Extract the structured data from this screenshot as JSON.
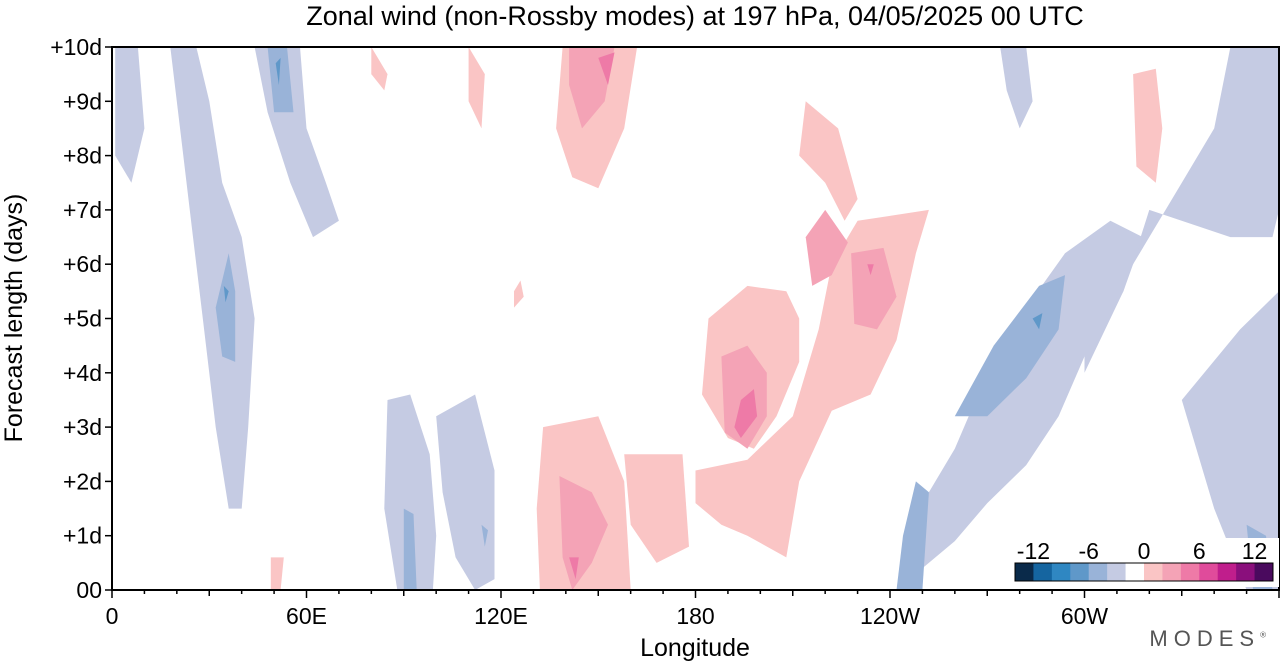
{
  "chart_data": {
    "type": "heatmap",
    "title": "Zonal wind (non-Rossby modes) at 197 hPa,  04/05/2025  00 UTC",
    "xlabel": "Longitude",
    "ylabel": "Forecast length (days)",
    "x_range_deg_east": [
      0,
      360
    ],
    "y_range_days": [
      0,
      10
    ],
    "x_ticks": [
      {
        "deg": 0,
        "label": "0"
      },
      {
        "deg": 60,
        "label": "60E"
      },
      {
        "deg": 120,
        "label": "120E"
      },
      {
        "deg": 180,
        "label": "180"
      },
      {
        "deg": 240,
        "label": "120W"
      },
      {
        "deg": 300,
        "label": "60W"
      }
    ],
    "y_ticks": [
      {
        "day": 0,
        "label": "00"
      },
      {
        "day": 1,
        "label": "+1d"
      },
      {
        "day": 2,
        "label": "+2d"
      },
      {
        "day": 3,
        "label": "+3d"
      },
      {
        "day": 4,
        "label": "+4d"
      },
      {
        "day": 5,
        "label": "+5d"
      },
      {
        "day": 6,
        "label": "+6d"
      },
      {
        "day": 7,
        "label": "+7d"
      },
      {
        "day": 8,
        "label": "+8d"
      },
      {
        "day": 9,
        "label": "+9d"
      },
      {
        "day": 10,
        "label": "+10d"
      }
    ],
    "colorbar": {
      "levels": [
        -14,
        -12,
        -10,
        -8,
        -6,
        -4,
        -2,
        2,
        4,
        6,
        8,
        10,
        12,
        14
      ],
      "colors": [
        "#0a2a4a",
        "#1565a0",
        "#2f87c2",
        "#5f98c9",
        "#99b3d8",
        "#c5cbe3",
        "#ffffff",
        "#fac5c5",
        "#f4a3b6",
        "#ee7aa7",
        "#e04b9b",
        "#c01e8c",
        "#8a0f7c",
        "#4a0a5e"
      ],
      "labels": [
        {
          "value": -12,
          "label": "-12"
        },
        {
          "value": -6,
          "label": "-6"
        },
        {
          "value": 0,
          "label": "0"
        },
        {
          "value": 6,
          "label": "6"
        },
        {
          "value": 12,
          "label": "12"
        }
      ],
      "placement": "bottom-right"
    },
    "features": [
      {
        "sign": "neg",
        "level": 1,
        "points": [
          [
            18,
            10
          ],
          [
            26,
            10
          ],
          [
            30,
            9
          ],
          [
            34,
            7.5
          ],
          [
            40,
            6.5
          ],
          [
            44,
            5
          ],
          [
            42,
            3
          ],
          [
            40,
            1.5
          ],
          [
            36,
            1.5
          ],
          [
            32,
            3
          ],
          [
            28,
            5
          ],
          [
            25,
            6.5
          ],
          [
            22,
            8
          ]
        ]
      },
      {
        "sign": "neg",
        "level": 2,
        "points": [
          [
            36,
            6.2
          ],
          [
            38,
            5.5
          ],
          [
            38,
            4.2
          ],
          [
            34,
            4.3
          ],
          [
            32,
            5.2
          ]
        ]
      },
      {
        "sign": "neg",
        "level": 3,
        "points": [
          [
            34.5,
            5.6
          ],
          [
            36,
            5.5
          ],
          [
            35,
            5.3
          ]
        ]
      },
      {
        "sign": "neg",
        "level": 1,
        "points": [
          [
            44,
            10
          ],
          [
            58,
            10
          ],
          [
            60,
            8.5
          ],
          [
            66,
            7.5
          ],
          [
            70,
            6.8
          ],
          [
            62,
            6.5
          ],
          [
            55,
            7.5
          ],
          [
            48,
            8.8
          ]
        ]
      },
      {
        "sign": "neg",
        "level": 2,
        "points": [
          [
            48,
            10
          ],
          [
            54,
            10
          ],
          [
            56,
            8.8
          ],
          [
            50,
            8.8
          ]
        ]
      },
      {
        "sign": "neg",
        "level": 3,
        "points": [
          [
            50.5,
            9.7
          ],
          [
            52,
            9.8
          ],
          [
            51.5,
            9.3
          ]
        ]
      },
      {
        "sign": "neg",
        "level": 1,
        "points": [
          [
            1,
            10
          ],
          [
            8,
            10
          ],
          [
            10,
            8.5
          ],
          [
            6,
            7.5
          ],
          [
            1,
            8
          ]
        ]
      },
      {
        "sign": "neg",
        "level": 1,
        "points": [
          [
            85,
            3.5
          ],
          [
            92,
            3.6
          ],
          [
            98,
            2.5
          ],
          [
            100,
            1.0
          ],
          [
            99,
            0
          ],
          [
            88,
            0
          ],
          [
            84,
            1.5
          ]
        ]
      },
      {
        "sign": "neg",
        "level": 2,
        "points": [
          [
            90,
            1.5
          ],
          [
            93,
            1.4
          ],
          [
            94,
            0
          ],
          [
            90,
            0
          ]
        ]
      },
      {
        "sign": "neg",
        "level": 1,
        "points": [
          [
            100,
            3.2
          ],
          [
            112,
            3.6
          ],
          [
            118,
            2.2
          ],
          [
            118,
            0.2
          ],
          [
            112,
            0
          ],
          [
            106,
            0.6
          ],
          [
            102,
            1.8
          ]
        ]
      },
      {
        "sign": "neg",
        "level": 2,
        "points": [
          [
            114,
            1.2
          ],
          [
            116,
            1.1
          ],
          [
            115,
            0.8
          ]
        ]
      },
      {
        "sign": "neg",
        "level": 1,
        "points": [
          [
            320,
            7.0
          ],
          [
            345,
            6.5
          ],
          [
            358,
            6.5
          ],
          [
            360,
            7
          ],
          [
            360,
            10
          ],
          [
            345,
            10
          ],
          [
            340,
            8.5
          ],
          [
            330,
            7.5
          ],
          [
            310,
            5.5
          ],
          [
            305,
            5.0
          ],
          [
            300,
            4.3
          ],
          [
            300,
            4.0
          ],
          [
            312,
            5.5
          ]
        ]
      },
      {
        "sign": "neg",
        "level": 1,
        "points": [
          [
            246,
            1.2
          ],
          [
            260,
            2.6
          ],
          [
            270,
            4.0
          ],
          [
            282,
            5.2
          ],
          [
            294,
            6.2
          ],
          [
            308,
            6.8
          ],
          [
            318,
            6.5
          ],
          [
            312,
            5.5
          ],
          [
            300,
            4.3
          ],
          [
            292,
            3.2
          ],
          [
            282,
            2.3
          ],
          [
            270,
            1.6
          ],
          [
            260,
            0.9
          ],
          [
            250,
            0.4
          ]
        ]
      },
      {
        "sign": "neg",
        "level": 2,
        "points": [
          [
            260,
            3.2
          ],
          [
            272,
            4.5
          ],
          [
            286,
            5.6
          ],
          [
            294,
            5.8
          ],
          [
            292,
            4.8
          ],
          [
            282,
            3.9
          ],
          [
            270,
            3.2
          ]
        ]
      },
      {
        "sign": "neg",
        "level": 3,
        "points": [
          [
            284,
            5.0
          ],
          [
            287,
            5.1
          ],
          [
            286,
            4.8
          ]
        ]
      },
      {
        "sign": "neg",
        "level": 2,
        "points": [
          [
            242,
            0
          ],
          [
            250,
            0
          ],
          [
            252,
            1.8
          ],
          [
            248,
            2.0
          ],
          [
            244,
            1.0
          ]
        ]
      },
      {
        "sign": "neg",
        "level": 1,
        "points": [
          [
            330,
            3.5
          ],
          [
            348,
            4.8
          ],
          [
            360,
            5.5
          ],
          [
            360,
            0
          ],
          [
            350,
            0
          ],
          [
            340,
            1.5
          ]
        ]
      },
      {
        "sign": "neg",
        "level": 2,
        "points": [
          [
            350,
            1.2
          ],
          [
            356,
            1.0
          ],
          [
            358,
            0
          ],
          [
            352,
            0
          ]
        ]
      },
      {
        "sign": "neg",
        "level": 1,
        "points": [
          [
            274,
            10
          ],
          [
            282,
            10
          ],
          [
            284,
            9
          ],
          [
            280,
            8.5
          ],
          [
            276,
            9.2
          ]
        ]
      },
      {
        "sign": "neg",
        "level": 1,
        "points": [
          [
            146,
            10
          ],
          [
            152,
            9.5
          ],
          [
            150,
            8.5
          ],
          [
            146,
            9.0
          ]
        ]
      },
      {
        "sign": "pos",
        "level": 1,
        "points": [
          [
            139,
            10
          ],
          [
            162,
            10
          ],
          [
            158,
            8.5
          ],
          [
            150,
            7.4
          ],
          [
            142,
            7.6
          ],
          [
            137,
            8.5
          ]
        ]
      },
      {
        "sign": "pos",
        "level": 2,
        "points": [
          [
            141,
            10
          ],
          [
            155,
            10
          ],
          [
            152,
            9.0
          ],
          [
            145,
            8.5
          ],
          [
            141,
            9.3
          ]
        ]
      },
      {
        "sign": "pos",
        "level": 3,
        "points": [
          [
            150,
            9.8
          ],
          [
            155,
            9.9
          ],
          [
            153,
            9.3
          ]
        ]
      },
      {
        "sign": "pos",
        "level": 1,
        "points": [
          [
            110,
            10
          ],
          [
            115,
            9.5
          ],
          [
            114,
            8.5
          ],
          [
            110,
            9.0
          ]
        ]
      },
      {
        "sign": "pos",
        "level": 1,
        "points": [
          [
            80,
            10
          ],
          [
            85,
            9.5
          ],
          [
            84,
            9.2
          ],
          [
            80,
            9.5
          ]
        ]
      },
      {
        "sign": "pos",
        "level": 1,
        "points": [
          [
            133,
            3.0
          ],
          [
            150,
            3.2
          ],
          [
            158,
            2.0
          ],
          [
            160,
            0
          ],
          [
            132,
            0
          ],
          [
            131,
            1.5
          ]
        ]
      },
      {
        "sign": "pos",
        "level": 2,
        "points": [
          [
            138,
            2.1
          ],
          [
            148,
            1.8
          ],
          [
            153,
            1.2
          ],
          [
            148,
            0.5
          ],
          [
            142,
            0
          ],
          [
            139,
            0.6
          ]
        ]
      },
      {
        "sign": "pos",
        "level": 3,
        "points": [
          [
            141,
            0.6
          ],
          [
            144,
            0.6
          ],
          [
            143,
            0.2
          ]
        ]
      },
      {
        "sign": "pos",
        "level": 1,
        "points": [
          [
            180,
            2.2
          ],
          [
            196,
            2.4
          ],
          [
            210,
            3.2
          ],
          [
            218,
            4.8
          ],
          [
            222,
            6.0
          ],
          [
            230,
            6.8
          ],
          [
            252,
            7.0
          ],
          [
            248,
            6.2
          ],
          [
            242,
            4.6
          ],
          [
            234,
            3.6
          ],
          [
            222,
            3.3
          ],
          [
            212,
            2.0
          ],
          [
            208,
            0.6
          ],
          [
            196,
            1.0
          ],
          [
            188,
            1.2
          ],
          [
            180,
            1.6
          ]
        ]
      },
      {
        "sign": "pos",
        "level": 1,
        "points": [
          [
            158,
            2.5
          ],
          [
            176,
            2.5
          ],
          [
            178,
            0.8
          ],
          [
            168,
            0.5
          ],
          [
            160,
            1.2
          ]
        ]
      },
      {
        "sign": "pos",
        "level": 1,
        "points": [
          [
            214,
            9.0
          ],
          [
            224,
            8.5
          ],
          [
            230,
            7.2
          ],
          [
            226,
            6.8
          ],
          [
            220,
            7.5
          ],
          [
            212,
            8.0
          ]
        ]
      },
      {
        "sign": "pos",
        "level": 1,
        "points": [
          [
            184,
            5.0
          ],
          [
            196,
            5.6
          ],
          [
            208,
            5.5
          ],
          [
            212,
            5.0
          ],
          [
            212,
            4.2
          ],
          [
            205,
            3.2
          ],
          [
            198,
            2.6
          ],
          [
            190,
            2.8
          ],
          [
            182,
            3.6
          ]
        ]
      },
      {
        "sign": "pos",
        "level": 2,
        "points": [
          [
            188,
            4.3
          ],
          [
            196,
            4.5
          ],
          [
            202,
            4.0
          ],
          [
            202,
            3.2
          ],
          [
            196,
            2.6
          ],
          [
            189,
            2.9
          ]
        ]
      },
      {
        "sign": "pos",
        "level": 3,
        "points": [
          [
            194,
            3.5
          ],
          [
            198,
            3.7
          ],
          [
            199,
            3.2
          ],
          [
            194,
            2.8
          ],
          [
            192,
            3.0
          ]
        ]
      },
      {
        "sign": "pos",
        "level": 2,
        "points": [
          [
            214,
            6.5
          ],
          [
            220,
            7.0
          ],
          [
            227,
            6.4
          ],
          [
            222,
            5.8
          ],
          [
            216,
            5.6
          ]
        ]
      },
      {
        "sign": "pos",
        "level": 2,
        "points": [
          [
            228,
            6.2
          ],
          [
            238,
            6.3
          ],
          [
            242,
            5.4
          ],
          [
            236,
            4.8
          ],
          [
            229,
            4.9
          ]
        ]
      },
      {
        "sign": "pos",
        "level": 3,
        "points": [
          [
            233,
            6.0
          ],
          [
            235,
            6.0
          ],
          [
            234,
            5.8
          ]
        ]
      },
      {
        "sign": "pos",
        "level": 1,
        "points": [
          [
            315,
            9.5
          ],
          [
            322,
            9.6
          ],
          [
            324,
            8.5
          ],
          [
            322,
            7.5
          ],
          [
            316,
            7.8
          ]
        ]
      },
      {
        "sign": "pos",
        "level": 1,
        "points": [
          [
            124,
            5.5
          ],
          [
            126,
            5.7
          ],
          [
            127,
            5.4
          ],
          [
            124,
            5.2
          ]
        ]
      },
      {
        "sign": "pos",
        "level": 1,
        "points": [
          [
            49,
            0.6
          ],
          [
            53,
            0.6
          ],
          [
            52,
            0
          ],
          [
            49,
            0
          ]
        ]
      }
    ]
  },
  "brand": "MODES"
}
